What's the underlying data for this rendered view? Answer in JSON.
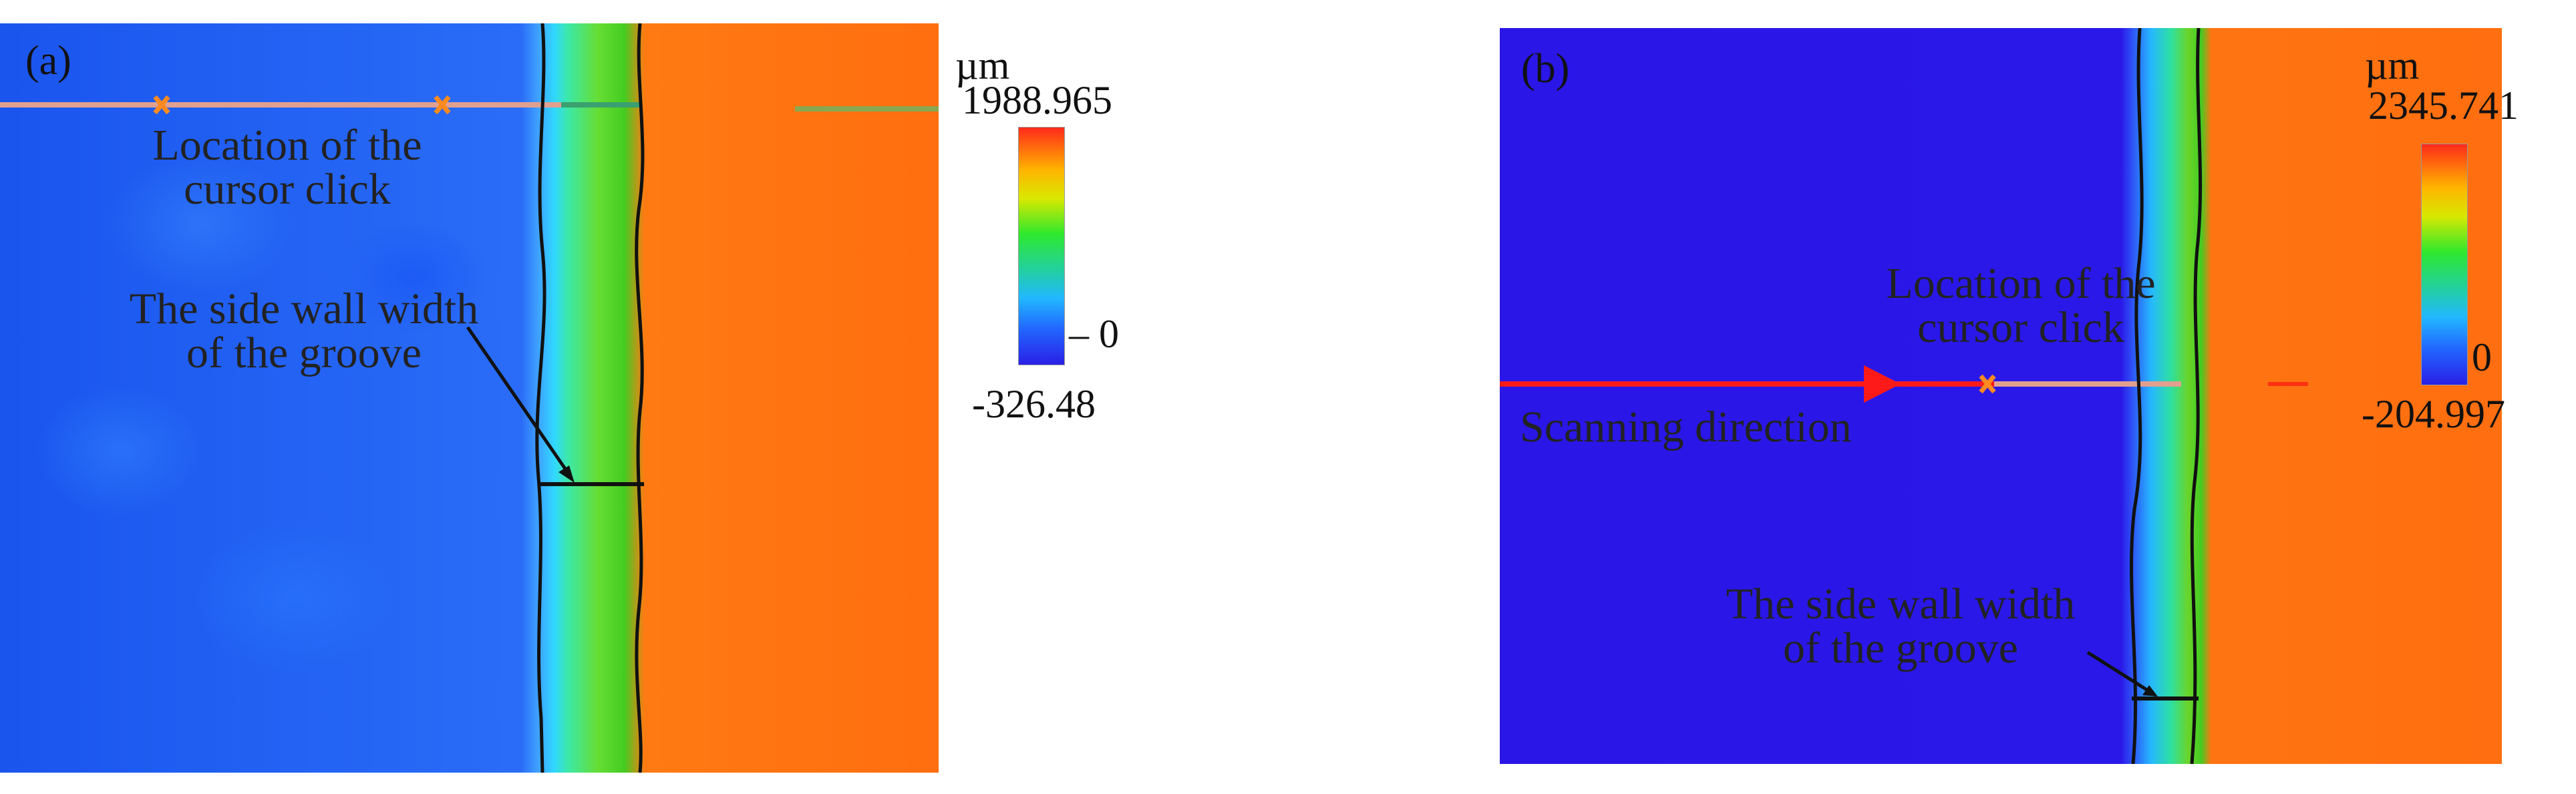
{
  "panel_a": {
    "letter": "(a)",
    "cursor_label_line1": "Location of the",
    "cursor_label_line2": "cursor click",
    "wall_label_line1": "The side wall width",
    "wall_label_line2": "of the  groove",
    "colorbar": {
      "unit": "µm",
      "max": "1988.965",
      "zero": "0",
      "min": "-326.48"
    },
    "colors": {
      "base": "#1a55ee",
      "plateau": "#ff6e10",
      "wall": "#44cc22"
    }
  },
  "panel_b": {
    "letter": "(b)",
    "cursor_label_line1": "Location  of the",
    "cursor_label_line2": "cursor click",
    "scan_label": "Scanning direction",
    "wall_label_line1": "The side wall width",
    "wall_label_line2": "of the  groove",
    "colorbar": {
      "unit": "µm",
      "max": "2345.741",
      "zero": "0",
      "min": "-204.997"
    },
    "colors": {
      "base": "#2a16e6",
      "plateau": "#ff6e10",
      "wall": "#44cc22",
      "scan_line": "#ff1a1a"
    }
  }
}
